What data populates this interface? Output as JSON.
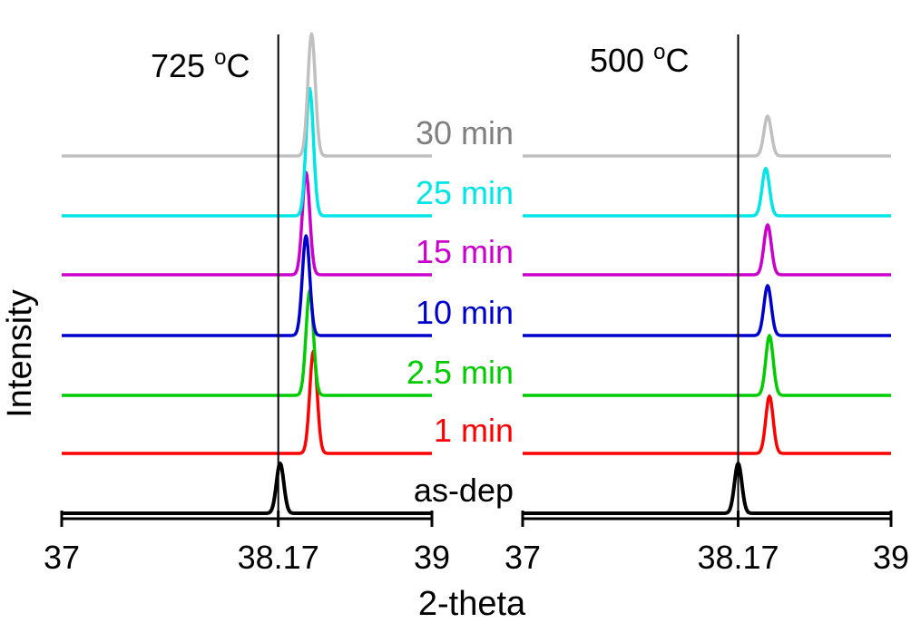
{
  "chart_data": {
    "type": "line",
    "xlabel": "2-theta",
    "ylabel": "Intensity",
    "reference_line": 38.17,
    "panels": [
      {
        "title": "725 °C",
        "title_main": "725 ",
        "title_sup": "o",
        "title_unit": "C",
        "xlim": [
          37,
          39
        ],
        "ticks": [
          "37",
          "38.17",
          "39"
        ],
        "series": [
          {
            "name": "as-dep",
            "color": "#000000",
            "peak": 38.18,
            "height": 1.0
          },
          {
            "name": "1 min",
            "color": "#ff0000",
            "peak": 38.36,
            "height": 2.05
          },
          {
            "name": "2.5 min",
            "color": "#00cc00",
            "peak": 38.34,
            "height": 2.1
          },
          {
            "name": "10 min",
            "color": "#0000cc",
            "peak": 38.32,
            "height": 2.0
          },
          {
            "name": "15 min",
            "color": "#cc00cc",
            "peak": 38.32,
            "height": 2.05
          },
          {
            "name": "25 min",
            "color": "#00e5e5",
            "peak": 38.34,
            "height": 2.55
          },
          {
            "name": "30 min",
            "color": "#c0c0c0",
            "peak": 38.35,
            "height": 2.45
          }
        ]
      },
      {
        "title": "500 °C",
        "title_main": "500 ",
        "title_sup": "o",
        "title_unit": "C",
        "xlim": [
          37,
          39
        ],
        "ticks": [
          "37",
          "38.17",
          "39"
        ],
        "series": [
          {
            "name": "as-dep",
            "color": "#000000",
            "peak": 38.17,
            "height": 1.0
          },
          {
            "name": "1 min",
            "color": "#ff0000",
            "peak": 38.34,
            "height": 1.15
          },
          {
            "name": "2.5 min",
            "color": "#00cc00",
            "peak": 38.34,
            "height": 1.2
          },
          {
            "name": "10 min",
            "color": "#0000cc",
            "peak": 38.33,
            "height": 1.0
          },
          {
            "name": "15 min",
            "color": "#cc00cc",
            "peak": 38.33,
            "height": 1.0
          },
          {
            "name": "25 min",
            "color": "#00e5e5",
            "peak": 38.32,
            "height": 0.95
          },
          {
            "name": "30 min",
            "color": "#c0c0c0",
            "peak": 38.33,
            "height": 0.8
          }
        ]
      }
    ]
  }
}
